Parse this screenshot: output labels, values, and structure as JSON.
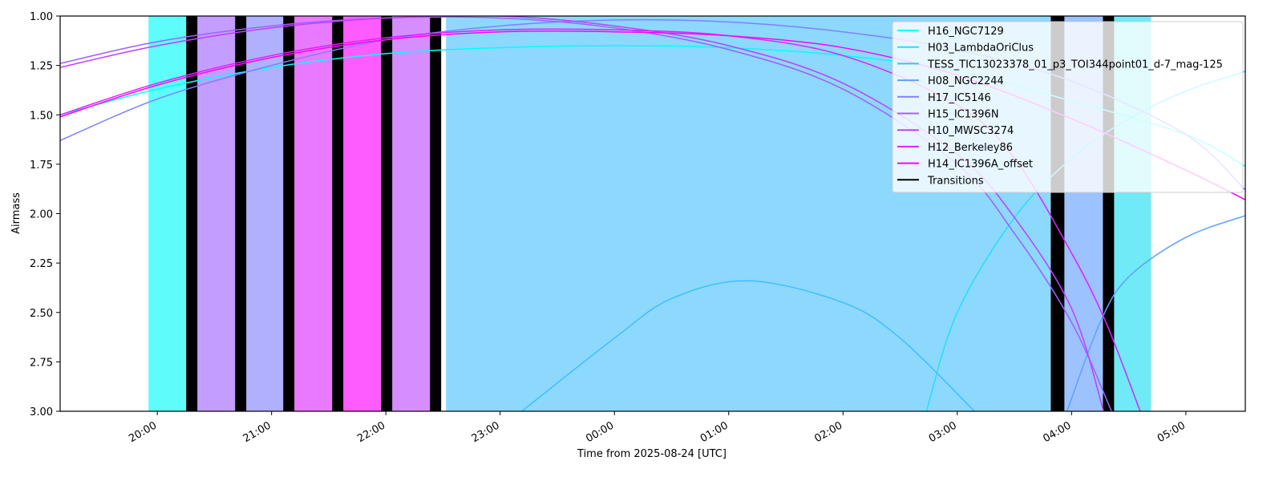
{
  "chart_data": {
    "type": "line",
    "xlabel": "Time from 2025-08-24 [UTC]",
    "ylabel": "Airmass",
    "xlim": [
      -4.85,
      5.52
    ],
    "ylim": [
      3,
      1
    ],
    "xticks": [
      {
        "value": -4,
        "label": "20:00"
      },
      {
        "value": -3,
        "label": "21:00"
      },
      {
        "value": -2,
        "label": "22:00"
      },
      {
        "value": -1,
        "label": "23:00"
      },
      {
        "value": 0,
        "label": "00:00"
      },
      {
        "value": 1,
        "label": "01:00"
      },
      {
        "value": 2,
        "label": "02:00"
      },
      {
        "value": 3,
        "label": "03:00"
      },
      {
        "value": 4,
        "label": "04:00"
      },
      {
        "value": 5,
        "label": "05:00"
      }
    ],
    "yticks": [
      {
        "value": 1,
        "label": "1.00"
      },
      1.25,
      {
        "value": 1.5,
        "label": "1.50"
      },
      1.75,
      {
        "value": 2,
        "label": "2.00"
      },
      2.25,
      {
        "value": 2.5,
        "label": "2.50"
      },
      2.75,
      {
        "value": 3,
        "label": "3.00"
      }
    ],
    "legend": "upper right",
    "blocks": [
      {
        "start": -4.077,
        "end": -3.747,
        "color": "#5ffcfc"
      },
      {
        "start": -3.649,
        "end": -3.319,
        "color": "#c39dff"
      },
      {
        "start": -3.221,
        "end": -2.898,
        "color": "#b0b0ff"
      },
      {
        "start": -2.8,
        "end": -2.47,
        "color": "#e97aff"
      },
      {
        "start": -2.372,
        "end": -2.042,
        "color": "#ff5cff"
      },
      {
        "start": -1.944,
        "end": -1.614,
        "color": "#d58dff"
      },
      {
        "start": -1.474,
        "end": 3.818,
        "color": "#8dd8fd"
      },
      {
        "start": 3.937,
        "end": 4.274,
        "color": "#9cc2ff"
      },
      {
        "start": 4.372,
        "end": 4.695,
        "color": "#6feaf6"
      }
    ],
    "transitions": {
      "name": "Transitions",
      "color": "#000000",
      "spans": [
        {
          "start": -3.747,
          "end": -3.649
        },
        {
          "start": -3.319,
          "end": -3.221
        },
        {
          "start": -2.898,
          "end": -2.8
        },
        {
          "start": -2.47,
          "end": -2.372
        },
        {
          "start": -2.042,
          "end": -1.944
        },
        {
          "start": -1.614,
          "end": -1.516
        },
        {
          "start": 3.818,
          "end": 3.937
        },
        {
          "start": 4.274,
          "end": 4.372
        }
      ]
    },
    "series": [
      {
        "name": "H16_NGC7129",
        "color": "#00ffff",
        "x": [
          -4.85,
          -4,
          -3,
          -2,
          -1,
          0,
          1,
          2,
          3,
          4,
          5,
          5.52
        ],
        "values": [
          1.5,
          1.37,
          1.26,
          1.19,
          1.16,
          1.15,
          1.16,
          1.2,
          1.28,
          1.43,
          1.6,
          1.76
        ]
      },
      {
        "name": "H03_LambdaOriClus",
        "color": "#20dfff",
        "x": [
          2.73,
          3,
          3.5,
          4,
          4.5,
          5,
          5.52
        ],
        "values": [
          3,
          2.5,
          2.02,
          1.72,
          1.52,
          1.38,
          1.28
        ]
      },
      {
        "name": "TESS_TIC13023378_01_p3_TOI344point01_d-7_mag-125",
        "color": "#40bfff",
        "x": [
          -0.81,
          0,
          0.5,
          1.17,
          2,
          2.5,
          3.15
        ],
        "values": [
          3,
          2.63,
          2.43,
          2.34,
          2.45,
          2.63,
          3
        ]
      },
      {
        "name": "H08_NGC2244",
        "color": "#60a0ff",
        "x": [
          3.96,
          4.25,
          4.5,
          5,
          5.52
        ],
        "values": [
          3,
          2.55,
          2.32,
          2.12,
          2.01
        ]
      },
      {
        "name": "H17_IC5146",
        "color": "#8080ff",
        "x": [
          -4.85,
          -4,
          -3,
          -2,
          -1,
          0,
          1,
          2,
          3,
          4,
          5,
          5.52
        ],
        "values": [
          1.63,
          1.42,
          1.25,
          1.12,
          1.05,
          1.02,
          1.03,
          1.08,
          1.17,
          1.33,
          1.6,
          1.88
        ]
      },
      {
        "name": "H15_IC1396N",
        "color": "#9f60ff",
        "x": [
          -4.85,
          -4,
          -3,
          -2,
          -1,
          0,
          1,
          2,
          3,
          3.5,
          4,
          4.35
        ],
        "values": [
          1.24,
          1.13,
          1.05,
          1.01,
          1.01,
          1.06,
          1.17,
          1.37,
          1.75,
          2.1,
          2.55,
          3
        ]
      },
      {
        "name": "H10_MWSC3274",
        "color": "#bf40ff",
        "x": [
          -4.85,
          -4,
          -3,
          -2,
          -1,
          0,
          1,
          2,
          3,
          3.5,
          4,
          4.28
        ],
        "values": [
          1.26,
          1.15,
          1.06,
          1.01,
          1,
          1.05,
          1.15,
          1.34,
          1.7,
          2.02,
          2.48,
          3
        ]
      },
      {
        "name": "H12_Berkeley86",
        "color": "#df20ff",
        "x": [
          -4.85,
          -4,
          -3,
          -2,
          -1,
          0,
          1,
          2,
          3,
          3.5,
          4,
          4.3,
          4.6
        ],
        "values": [
          1.5,
          1.34,
          1.2,
          1.11,
          1.07,
          1.07,
          1.1,
          1.2,
          1.45,
          1.72,
          2.2,
          2.55,
          3
        ]
      },
      {
        "name": "H14_IC1396A_offset",
        "color": "#ff00ff",
        "x": [
          -4.85,
          -4,
          -3,
          -2,
          -1,
          0,
          1,
          2,
          3,
          4,
          5,
          5.52
        ],
        "values": [
          1.51,
          1.35,
          1.21,
          1.12,
          1.08,
          1.08,
          1.1,
          1.16,
          1.3,
          1.52,
          1.78,
          1.93
        ]
      }
    ]
  }
}
